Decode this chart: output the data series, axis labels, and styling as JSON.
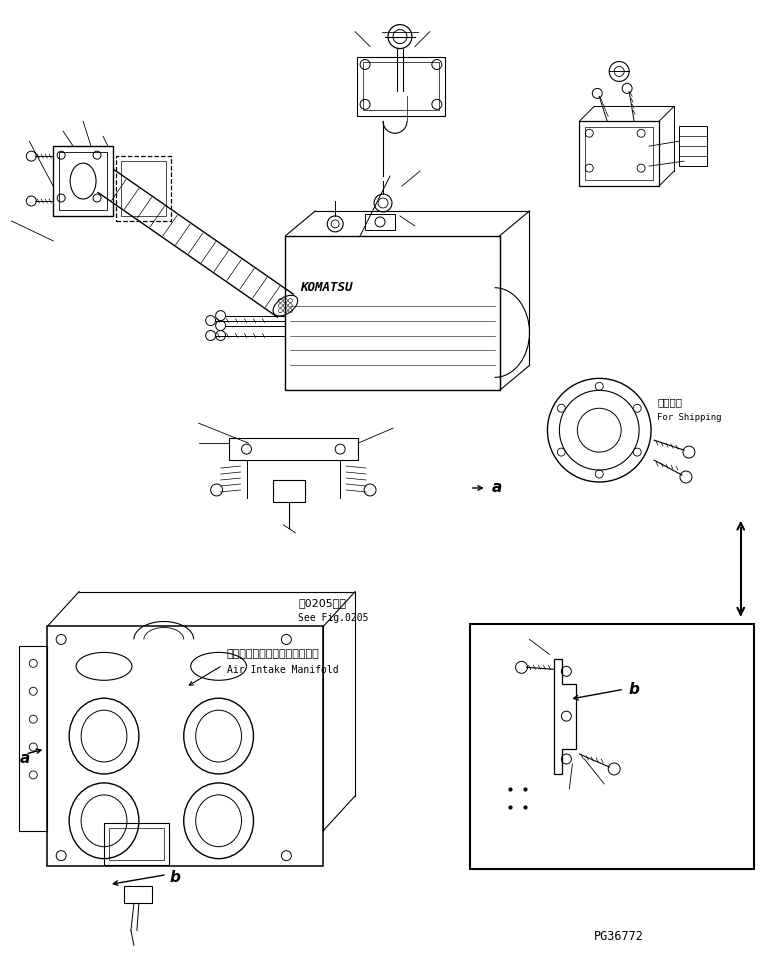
{
  "background_color": "#ffffff",
  "line_color": "#000000",
  "fig_width": 7.79,
  "fig_height": 9.61,
  "part_number": "PG36772",
  "label_a_text": "a",
  "label_b_text": "b",
  "shipping_jp": "運沢部品",
  "shipping_en": "For Shipping",
  "ref_jp": "第0205参照",
  "ref_en": "See Fig.0205",
  "intake_jp": "エアーインテークマニホルド゚",
  "intake_en": "Air Intake Manifold"
}
